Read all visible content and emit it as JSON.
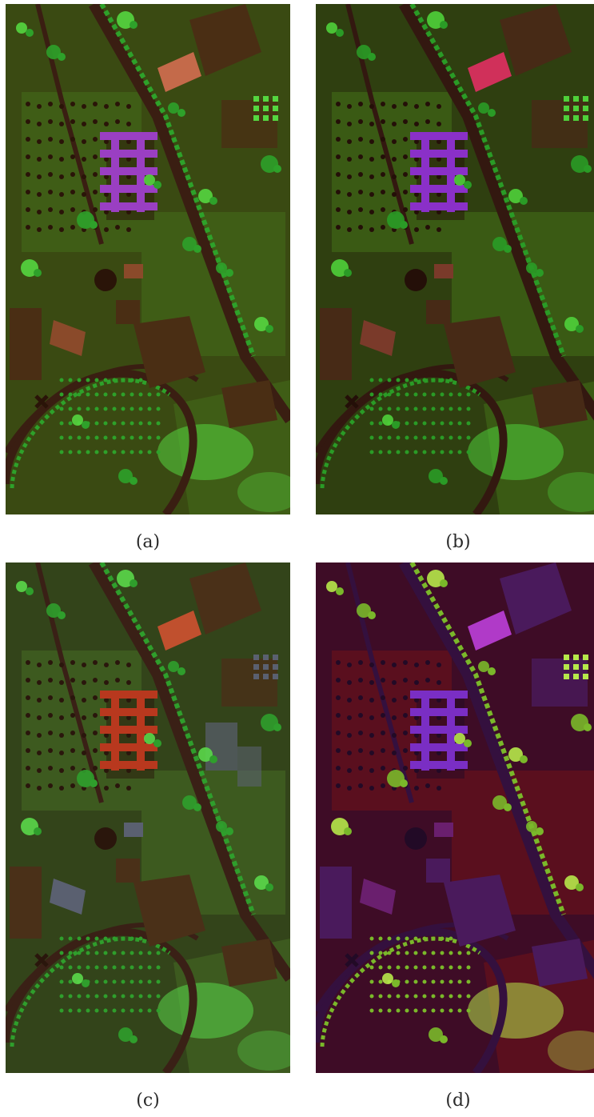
{
  "panels": [
    {
      "id": "a",
      "caption": "(a)",
      "palette": {
        "bg": "#3a4a12",
        "field": "#3f5d16",
        "veg": "#2ea12a",
        "veg_light": "#55d640",
        "road": "#3a1e12",
        "building": "#4a2e14",
        "roof_bright": "#c46a4a",
        "feature": "#9a3fc2",
        "dark": "#2a1408",
        "accent": "#8a4a2a"
      }
    },
    {
      "id": "b",
      "caption": "(b)",
      "palette": {
        "bg": "#2f3f10",
        "field": "#3a5a14",
        "veg": "#2a9b26",
        "veg_light": "#4fd03a",
        "road": "#331810",
        "building": "#472a16",
        "roof_bright": "#d0305a",
        "feature": "#8a30c8",
        "dark": "#240f08",
        "accent": "#7a3a2a"
      }
    },
    {
      "id": "c",
      "caption": "(c)",
      "palette": {
        "bg": "#33441a",
        "field": "#3d5a1f",
        "veg": "#2f9e2c",
        "veg_light": "#5ad84a",
        "road": "#3a2016",
        "building": "#4a3018",
        "roof_bright": "#c0502e",
        "feature": "#b8381e",
        "dark": "#2a160c",
        "accent": "#5a6070"
      }
    },
    {
      "id": "d",
      "caption": "(d)",
      "palette": {
        "bg": "#3e0c26",
        "field": "#5a0f1e",
        "veg": "#7ab82a",
        "veg_light": "#b6e84a",
        "road": "#34103e",
        "building": "#4a1a5c",
        "roof_bright": "#b03ac8",
        "feature": "#7a2ec4",
        "dark": "#220a26",
        "accent": "#6a1f6e"
      }
    }
  ]
}
